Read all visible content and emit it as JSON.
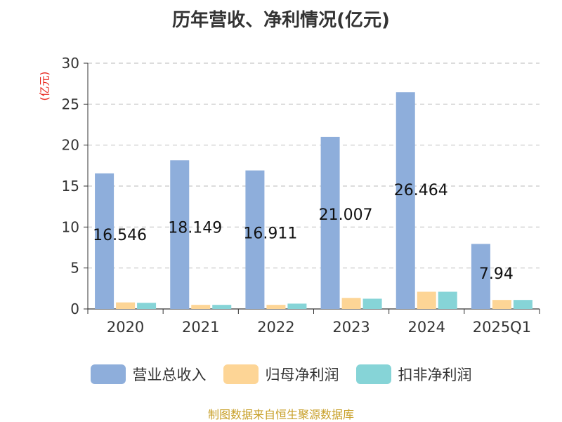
{
  "chart_data": {
    "type": "bar",
    "title": "历年营收、净利情况(亿元)",
    "ylabel": "(亿元)",
    "xlabel": "",
    "categories": [
      "2020",
      "2021",
      "2022",
      "2023",
      "2024",
      "2025Q1"
    ],
    "ylim": [
      0,
      30
    ],
    "yticks": [
      0,
      5,
      10,
      15,
      20,
      25,
      30
    ],
    "grid": true,
    "legend_position": "bottom",
    "series": [
      {
        "name": "营业总收入",
        "color": "#8eaedb",
        "values": [
          16.546,
          18.149,
          16.911,
          21.007,
          26.464,
          7.94
        ]
      },
      {
        "name": "归母净利润",
        "color": "#fdd596",
        "values": [
          0.8,
          0.5,
          0.5,
          1.35,
          2.1,
          1.1
        ]
      },
      {
        "name": "扣非净利润",
        "color": "#86d4d7",
        "values": [
          0.75,
          0.5,
          0.65,
          1.25,
          2.1,
          1.1
        ]
      }
    ],
    "data_labels": [
      "16.546",
      "18.149",
      "16.911",
      "21.007",
      "26.464",
      "7.94"
    ],
    "source": "制图数据来自恒生聚源数据库"
  }
}
